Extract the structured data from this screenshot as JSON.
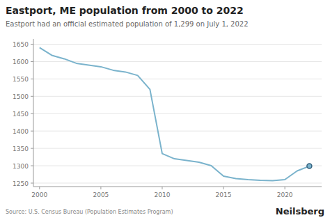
{
  "chart_data": {
    "type": "line",
    "title": "Eastport, ME population from 2000 to 2022",
    "subtitle": "Eastport had an official estimated population of 1,299 on July 1, 2022",
    "annotations": [
      "Source: U.S. Census Bureau (Population Estimates Program)",
      "Neilsberg"
    ],
    "x": [
      2000,
      2001,
      2002,
      2003,
      2004,
      2005,
      2006,
      2007,
      2008,
      2009,
      2010,
      2011,
      2012,
      2013,
      2014,
      2015,
      2016,
      2017,
      2018,
      2019,
      2020,
      2021,
      2022
    ],
    "values": [
      1640,
      1618,
      1608,
      1595,
      1590,
      1585,
      1575,
      1570,
      1560,
      1520,
      1335,
      1320,
      1315,
      1310,
      1300,
      1270,
      1263,
      1260,
      1258,
      1257,
      1260,
      1285,
      1299
    ],
    "color": "#7ab3cc",
    "xlim": [
      1999.5,
      2023.0
    ],
    "xticks": [
      2000,
      2005,
      2010,
      2015,
      2020
    ],
    "ylim": [
      1240,
      1665
    ],
    "yticks": [
      1250,
      1300,
      1350,
      1400,
      1450,
      1500,
      1550,
      1600,
      1650
    ],
    "grid": true
  }
}
